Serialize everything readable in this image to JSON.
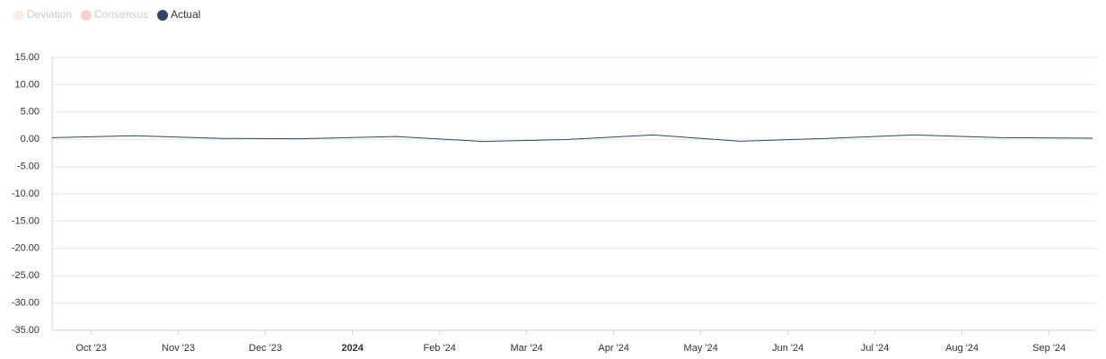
{
  "chart_data": {
    "type": "line",
    "series": [
      {
        "name": "Deviation",
        "color": "#fbeee6",
        "hidden": true,
        "values": [
          null,
          null,
          null,
          null,
          null,
          null,
          null,
          null,
          null,
          null,
          null,
          null,
          null
        ]
      },
      {
        "name": "Consensus",
        "color": "#f8d3cc",
        "hidden": true,
        "values": [
          null,
          null,
          null,
          null,
          null,
          null,
          null,
          null,
          null,
          null,
          null,
          null,
          null
        ]
      },
      {
        "name": "Actual",
        "color": "#2f4468",
        "hidden": false,
        "values": [
          0.3,
          0.65,
          0.15,
          0.1,
          0.5,
          -0.4,
          -0.05,
          0.8,
          -0.35,
          0.15,
          0.8,
          0.3,
          0.2
        ]
      }
    ],
    "x": [
      -0.45,
      0.5,
      1.5,
      2.4,
      3.5,
      4.5,
      5.45,
      6.45,
      7.45,
      8.45,
      9.45,
      10.45,
      11.5
    ],
    "xlim": [
      -0.45,
      11.55
    ],
    "xticks": [
      {
        "value": 0,
        "label": "Oct '23"
      },
      {
        "value": 1,
        "label": "Nov '23"
      },
      {
        "value": 2,
        "label": "Dec '23"
      },
      {
        "value": 3,
        "label": "2024"
      },
      {
        "value": 4,
        "label": "Feb '24"
      },
      {
        "value": 5,
        "label": "Mar '24"
      },
      {
        "value": 6,
        "label": "Apr '24"
      },
      {
        "value": 7,
        "label": "May '24"
      },
      {
        "value": 8,
        "label": "Jun '24"
      },
      {
        "value": 9,
        "label": "Jul '24"
      },
      {
        "value": 10,
        "label": "Aug '24"
      },
      {
        "value": 11,
        "label": "Sep '24"
      }
    ],
    "ylim": [
      -35,
      15
    ],
    "yticks": [
      {
        "value": -35,
        "label": "-35.00"
      },
      {
        "value": -30,
        "label": "-30.00"
      },
      {
        "value": -25,
        "label": "-25.00"
      },
      {
        "value": -20,
        "label": "-20.00"
      },
      {
        "value": -15,
        "label": "-15.00"
      },
      {
        "value": -10,
        "label": "-10.00"
      },
      {
        "value": -5,
        "label": "-5.00"
      },
      {
        "value": 0,
        "label": "0.00"
      },
      {
        "value": 5,
        "label": "5.00"
      },
      {
        "value": 10,
        "label": "10.00"
      },
      {
        "value": 15,
        "label": "15.00"
      }
    ],
    "grid": true
  }
}
